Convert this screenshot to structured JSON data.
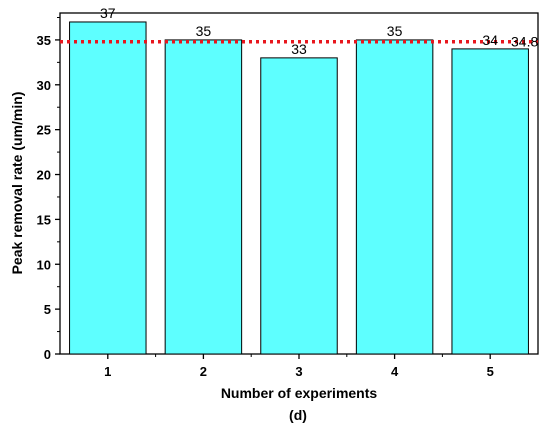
{
  "chart_data": {
    "type": "bar",
    "categories": [
      "1",
      "2",
      "3",
      "4",
      "5"
    ],
    "values": [
      37,
      35,
      33,
      35,
      34
    ],
    "data_labels": [
      "37",
      "35",
      "33",
      "35",
      "34"
    ],
    "xlabel": "Number of experiments",
    "ylabel": "Peak removal rate (um/min)",
    "caption": "(d)",
    "ylim": [
      0,
      38
    ],
    "yticks": [
      0,
      5,
      10,
      15,
      20,
      25,
      30,
      35
    ],
    "reference_line": {
      "value": 34.8,
      "label": "34.8",
      "style": "dotted"
    },
    "grid": false,
    "colors": {
      "bar_fill": "#5effff",
      "bar_stroke": "#000000",
      "reference_line": "#e8161d"
    }
  }
}
